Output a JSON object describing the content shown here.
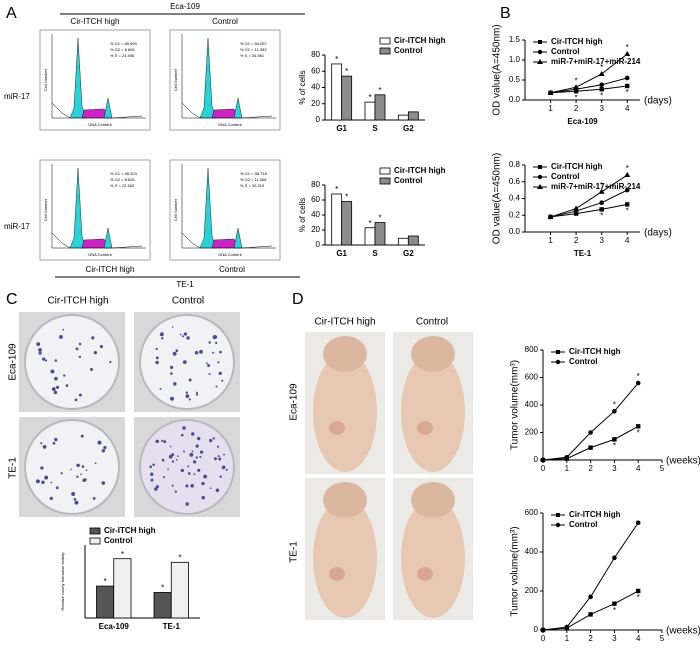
{
  "figure": {
    "panels": [
      "A",
      "B",
      "C",
      "D"
    ],
    "a": {
      "top": "Eca-109",
      "bottom": "TE-1",
      "top_columns": [
        "Cir-ITCH high",
        "Control"
      ],
      "bottom_columns": [
        "Cir-ITCH high",
        "Control"
      ],
      "rows": [
        "miR-17",
        "miR-17"
      ],
      "y_axis": "Cell Number",
      "x_axis": "DNA Content",
      "flow": [
        {
          "stats": [
            "% G1 = 69.990",
            "% G2 = 6.606",
            "% S = 23.406"
          ]
        },
        {
          "stats": [
            "% G1 = 54.057",
            "% G2 = 11.393",
            "% S = 34.551"
          ]
        },
        {
          "stats": [
            "% G1 = 68.203",
            "% G2 = 8.626",
            "% S = 23.162"
          ]
        },
        {
          "stats": [
            "% G1 = 58.716",
            "% G2 = 11.066",
            "% S = 30.219"
          ]
        }
      ]
    },
    "c": {
      "columns": [
        "Cir-ITCH high",
        "Control"
      ],
      "rows": [
        "Eca-109",
        "TE-1"
      ]
    },
    "d": {
      "columns": [
        "Cir-ITCH high",
        "Control"
      ],
      "rows": [
        "Eca-109",
        "TE-1"
      ]
    }
  },
  "chart_data": [
    {
      "type": "bar",
      "categories": [
        "G1",
        "S",
        "G2"
      ],
      "ylabel": "% of cells",
      "ylim": [
        0,
        80
      ],
      "yticks": [
        0,
        20,
        40,
        60,
        80
      ],
      "legend": "upper right",
      "series": [
        {
          "name": "Cir-ITCH high",
          "color": "#ffffff",
          "values": [
            69,
            22,
            6
          ],
          "significance": [
            "*",
            "*",
            null
          ]
        },
        {
          "name": "Control",
          "color": "#8c8c8c",
          "values": [
            54,
            31,
            10
          ],
          "significance": [
            "*",
            "*",
            null
          ]
        }
      ]
    },
    {
      "type": "bar",
      "categories": [
        "G1",
        "S",
        "G2"
      ],
      "ylabel": "% of cells",
      "ylim": [
        0,
        80
      ],
      "yticks": [
        0,
        20,
        40,
        60,
        80
      ],
      "legend": "upper right",
      "series": [
        {
          "name": "Cir-ITCH high",
          "color": "#ffffff",
          "values": [
            68,
            23,
            9
          ],
          "significance": [
            "*",
            "*",
            null
          ]
        },
        {
          "name": "Control",
          "color": "#8c8c8c",
          "values": [
            58,
            30,
            12
          ],
          "significance": [
            "*",
            "*",
            null
          ]
        }
      ]
    },
    {
      "type": "line",
      "xlabel": "Eca-109",
      "xunit": "(days)",
      "ylabel": "OD value(A=450nm)",
      "x": [
        1,
        2,
        3,
        4
      ],
      "xlim": [
        0,
        4.5
      ],
      "xticks": [
        1,
        2,
        3,
        4
      ],
      "ylim": [
        0,
        1.5
      ],
      "yticks": [
        {
          "value": 0,
          "label": "0.0"
        },
        0.5,
        {
          "value": 1,
          "label": "1.0"
        },
        1.5
      ],
      "legend": "upper left",
      "series": [
        {
          "name": "Cir-ITCH high",
          "color": "#000000",
          "marker": "square",
          "values": [
            0.18,
            0.22,
            0.27,
            0.35
          ],
          "significance": [
            null,
            "*",
            "*",
            "*"
          ]
        },
        {
          "name": "Control",
          "color": "#000000",
          "marker": "circle",
          "values": [
            0.18,
            0.27,
            0.38,
            0.55
          ],
          "significance": [
            null,
            null,
            null,
            null
          ]
        },
        {
          "name": "miR-7+miR-17+miR-214",
          "color": "#000000",
          "marker": "triangle",
          "values": [
            0.18,
            0.32,
            0.65,
            1.15
          ],
          "significance": [
            null,
            "*",
            "*",
            "*"
          ]
        }
      ]
    },
    {
      "type": "line",
      "xlabel": "TE-1",
      "xunit": "(days)",
      "ylabel": "OD value(A=450nm)",
      "x": [
        1,
        2,
        3,
        4
      ],
      "xlim": [
        0,
        4.5
      ],
      "xticks": [
        1,
        2,
        3,
        4
      ],
      "ylim": [
        0,
        0.8
      ],
      "yticks": [
        {
          "value": 0,
          "label": "0.0"
        },
        0.2,
        0.4,
        0.6,
        0.8
      ],
      "legend": "upper left",
      "series": [
        {
          "name": "Cir-ITCH high",
          "color": "#000000",
          "marker": "square",
          "values": [
            0.18,
            0.22,
            0.27,
            0.33
          ],
          "significance": [
            null,
            null,
            "*",
            "*"
          ]
        },
        {
          "name": "Control",
          "color": "#000000",
          "marker": "circle",
          "values": [
            0.18,
            0.25,
            0.35,
            0.5
          ],
          "significance": [
            null,
            null,
            null,
            null
          ]
        },
        {
          "name": "miR-7+miR-17+miR-214",
          "color": "#000000",
          "marker": "triangle",
          "values": [
            0.18,
            0.28,
            0.48,
            0.68
          ],
          "significance": [
            null,
            null,
            "*",
            "*"
          ]
        }
      ]
    },
    {
      "type": "bar",
      "categories": [
        "Eca-109",
        "TE-1"
      ],
      "ylabel": "Relative colony formation activity",
      "ylim": [
        0,
        80
      ],
      "legend": "upper left",
      "series": [
        {
          "name": "Cir-ITCH high",
          "color": "#555555",
          "values": [
            35,
            28
          ],
          "significance": [
            "*",
            "*"
          ]
        },
        {
          "name": "Control",
          "color": "#f0f0f0",
          "values": [
            65,
            61
          ],
          "significance": [
            "*",
            "*"
          ]
        }
      ]
    },
    {
      "type": "line",
      "xunit": "(weeks)",
      "ylabel": "Tumor volume(mm³)",
      "x": [
        0,
        1,
        2,
        3,
        4
      ],
      "xlim": [
        0,
        5
      ],
      "xticks": [
        0,
        1,
        2,
        3,
        4,
        5
      ],
      "ylim": [
        0,
        800
      ],
      "yticks": [
        0,
        200,
        400,
        600,
        800
      ],
      "legend": "upper left",
      "series": [
        {
          "name": "Cir-ITCH high",
          "color": "#000000",
          "marker": "square",
          "values": [
            0,
            10,
            90,
            150,
            245
          ],
          "significance": [
            null,
            null,
            null,
            "*",
            "*"
          ]
        },
        {
          "name": "Control",
          "color": "#000000",
          "marker": "circle",
          "values": [
            0,
            20,
            200,
            355,
            560
          ],
          "significance": [
            null,
            null,
            null,
            "*",
            "*"
          ]
        }
      ]
    },
    {
      "type": "line",
      "xunit": "(weeks)",
      "ylabel": "Tumor volume(mm³)",
      "x": [
        0,
        1,
        2,
        3,
        4
      ],
      "xlim": [
        0,
        5
      ],
      "xticks": [
        0,
        1,
        2,
        3,
        4,
        5
      ],
      "ylim": [
        0,
        600
      ],
      "yticks": [
        0,
        200,
        400,
        600
      ],
      "legend": "upper left",
      "series": [
        {
          "name": "Cir-ITCH high",
          "color": "#000000",
          "marker": "square",
          "values": [
            0,
            10,
            80,
            135,
            200
          ],
          "significance": [
            null,
            null,
            null,
            "*",
            "*"
          ]
        },
        {
          "name": "Control",
          "color": "#000000",
          "marker": "circle",
          "values": [
            0,
            15,
            170,
            370,
            550
          ],
          "significance": [
            null,
            null,
            null,
            null,
            null
          ]
        }
      ]
    }
  ]
}
